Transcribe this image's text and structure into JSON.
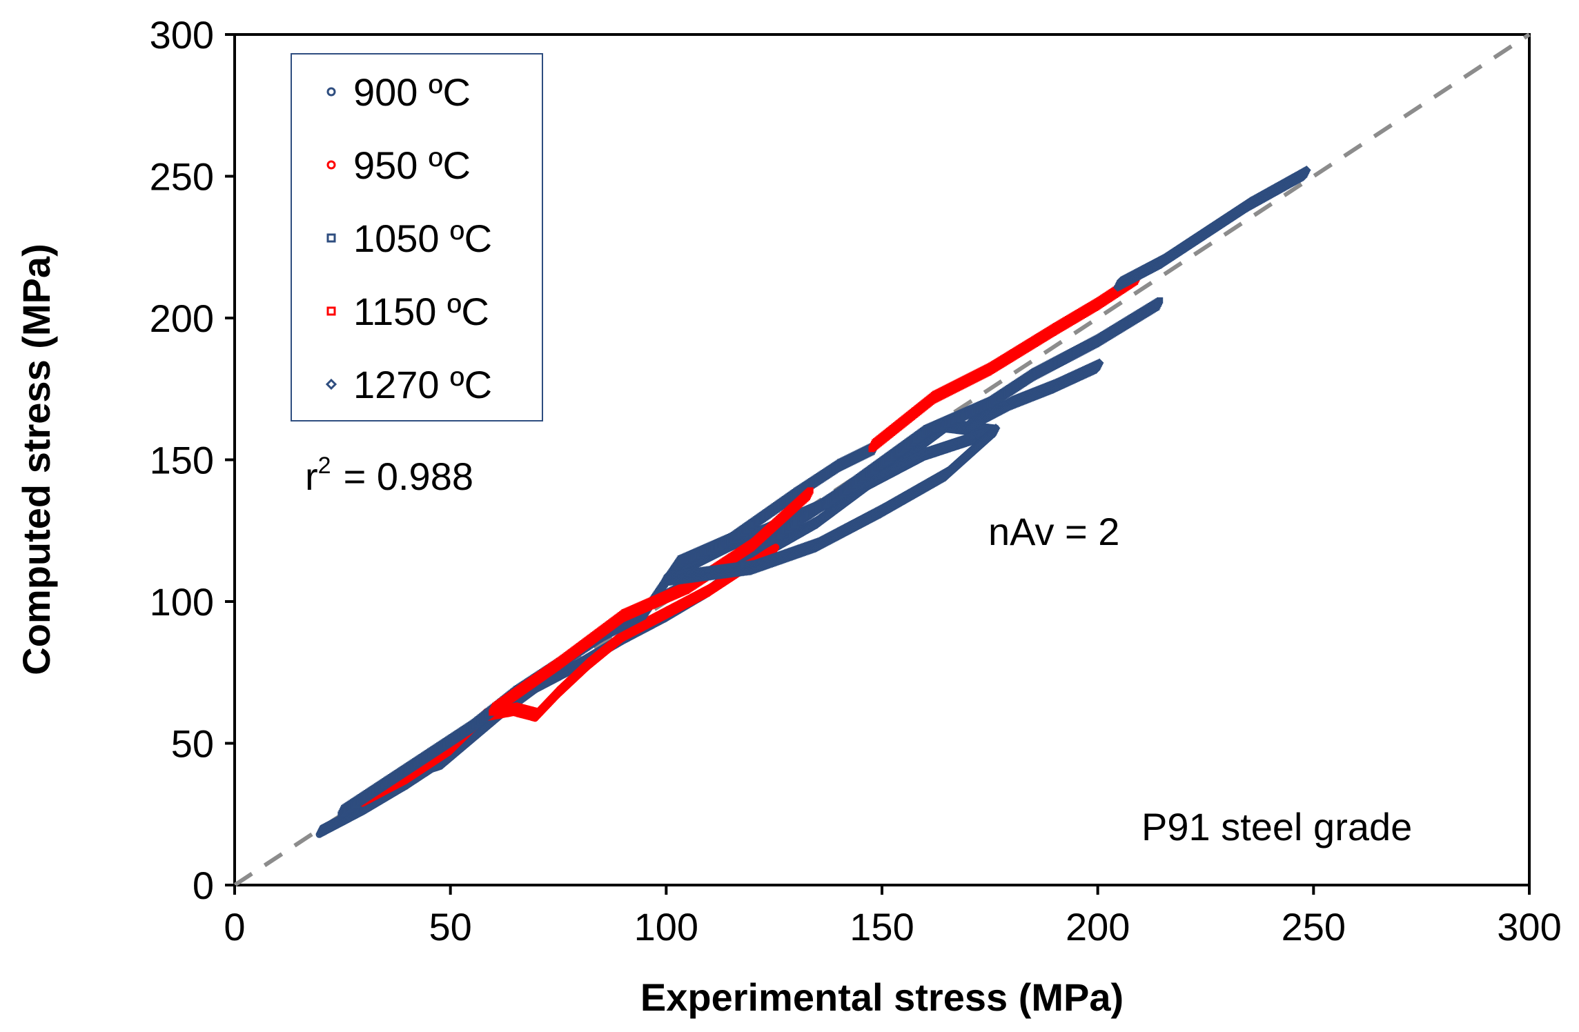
{
  "chart_data": {
    "type": "scatter",
    "title": "",
    "xlabel": "Experimental stress (MPa)",
    "ylabel": "Computed stress (MPa)",
    "xlim": [
      0,
      300
    ],
    "ylim": [
      0,
      300
    ],
    "xticks": [
      "0",
      "50",
      "100",
      "150",
      "200",
      "250",
      "300"
    ],
    "yticks": [
      "0",
      "50",
      "100",
      "150",
      "200",
      "250",
      "300"
    ],
    "grid": false,
    "legend_position": "top-left",
    "reference_line": {
      "type": "dashed",
      "color": "#8c8c8c",
      "from": [
        0,
        0
      ],
      "to": [
        300,
        300
      ]
    },
    "annotations": {
      "r2_label": "r",
      "r2_sup": "2",
      "r2_value": "= 0.988",
      "nav": "nAv = 2",
      "grade": "P91 steel grade"
    },
    "series": [
      {
        "name": "900 ºC",
        "marker": "circle",
        "color": "#2e4d7f",
        "segments": [
          [
            [
              20,
              19
            ],
            [
              30,
              27
            ],
            [
              40,
              36
            ],
            [
              46,
              42
            ],
            [
              48,
              43
            ]
          ],
          [
            [
              48,
              43
            ],
            [
              55,
              52
            ],
            [
              62,
              61
            ],
            [
              70,
              70
            ],
            [
              80,
              78
            ],
            [
              90,
              87
            ],
            [
              100,
              95
            ],
            [
              110,
              104
            ],
            [
              120,
              115
            ],
            [
              135,
              128
            ],
            [
              150,
              145
            ],
            [
              165,
              162
            ],
            [
              176,
              160
            ]
          ],
          [
            [
              176,
              160
            ],
            [
              160,
              152
            ],
            [
              145,
              140
            ],
            [
              130,
              130
            ],
            [
              115,
              120
            ],
            [
              102,
              110
            ]
          ]
        ]
      },
      {
        "name": "950 ºC",
        "marker": "circle",
        "color": "#ff0000",
        "segments": [
          [
            [
              30,
              30
            ],
            [
              40,
              38
            ],
            [
              50,
              48
            ],
            [
              58,
              60
            ],
            [
              65,
              62
            ],
            [
              70,
              60
            ],
            [
              75,
              68
            ],
            [
              82,
              78
            ],
            [
              90,
              88
            ],
            [
              100,
              96
            ],
            [
              110,
              104
            ],
            [
              120,
              114
            ],
            [
              125,
              118
            ]
          ]
        ]
      },
      {
        "name": "1050 ºC",
        "marker": "square",
        "color": "#2e4d7f",
        "segments": [
          [
            [
              25,
              26
            ],
            [
              35,
              36
            ],
            [
              45,
              46
            ],
            [
              55,
              56
            ],
            [
              65,
              68
            ],
            [
              75,
              78
            ],
            [
              85,
              88
            ],
            [
              95,
              96
            ]
          ],
          [
            [
              95,
              96
            ],
            [
              103,
              114
            ],
            [
              115,
              122
            ],
            [
              130,
              138
            ],
            [
              140,
              148
            ],
            [
              148,
              154
            ]
          ],
          [
            [
              100,
              102
            ],
            [
              120,
              118
            ],
            [
              140,
              138
            ],
            [
              160,
              160
            ],
            [
              175,
              170
            ],
            [
              185,
              180
            ],
            [
              200,
              192
            ],
            [
              214,
              205
            ]
          ]
        ]
      },
      {
        "name": "1150 ºC",
        "marker": "square",
        "color": "#ff0000",
        "segments": [
          [
            [
              60,
              62
            ],
            [
              75,
              78
            ],
            [
              90,
              95
            ],
            [
              105,
              105
            ],
            [
              120,
              120
            ],
            [
              133,
              138
            ]
          ],
          [
            [
              148,
              155
            ],
            [
              162,
              172
            ],
            [
              175,
              182
            ],
            [
              190,
              196
            ],
            [
              200,
              205
            ],
            [
              209,
              214
            ]
          ]
        ]
      },
      {
        "name": "1270 ºC",
        "marker": "diamond",
        "color": "#2e4d7f",
        "segments": [
          [
            [
              205,
              212
            ],
            [
              215,
              220
            ],
            [
              225,
              230
            ],
            [
              235,
              240
            ],
            [
              248,
              251
            ]
          ],
          [
            [
              100,
              108
            ],
            [
              110,
              110
            ],
            [
              120,
              112
            ],
            [
              135,
              120
            ],
            [
              150,
              132
            ],
            [
              165,
              145
            ],
            [
              176,
              160
            ]
          ],
          [
            [
              170,
              162
            ],
            [
              180,
              170
            ],
            [
              190,
              176
            ],
            [
              200,
              183
            ]
          ]
        ]
      }
    ]
  }
}
